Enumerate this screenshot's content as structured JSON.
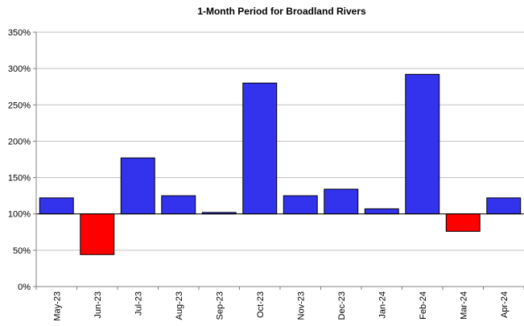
{
  "chart_data": {
    "type": "bar",
    "title": "1-Month Period for Broadland Rivers",
    "xlabel": "",
    "ylabel": "",
    "baseline": 100,
    "ylim": [
      0,
      350
    ],
    "yticks": [
      0,
      50,
      100,
      150,
      200,
      250,
      300,
      350
    ],
    "ytick_labels": [
      "0%",
      "50%",
      "100%",
      "150%",
      "200%",
      "250%",
      "300%",
      "350%"
    ],
    "grid": true,
    "categories": [
      "May-23",
      "Jun-23",
      "Jul-23",
      "Aug-23",
      "Sep-23",
      "Oct-23",
      "Nov-23",
      "Dec-23",
      "Jan-24",
      "Feb-24",
      "Mar-24",
      "Apr-24"
    ],
    "values": [
      122,
      44,
      177,
      125,
      102,
      280,
      125,
      134,
      107,
      292,
      76,
      122
    ],
    "colors": {
      "above": "#3333ee",
      "below": "#ff0000",
      "grid": "#c0c0c0",
      "axis": "#808080"
    }
  }
}
